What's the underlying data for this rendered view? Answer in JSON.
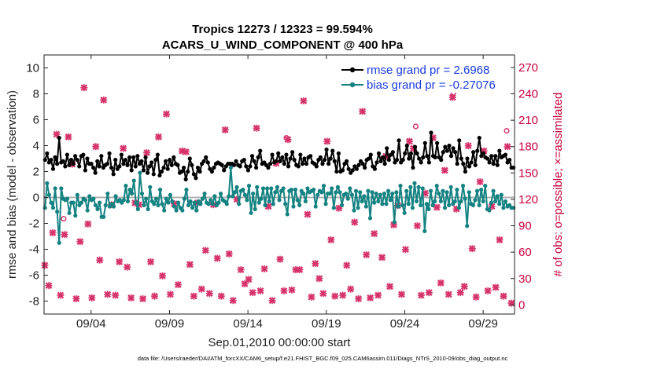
{
  "chart_data": {
    "type": "line",
    "title": [
      "Tropics 12273 / 12323 = 99.594%",
      "ACARS_U_WIND_COMPONENT @ 400 hPa"
    ],
    "xlabel": "Sep.01,2010 00:00:00 start",
    "ylabel": "rmse and bias (model - observation)",
    "y2label": "# of obs: o=possible; ×=assimilated",
    "footnote": "data file: /Users/raeder/DAI/ATM_forcXX/CAM6_setup/f.e21.FHIST_BGC.f09_025.CAM6assim.011/Diags_NTrS_2010-09/obs_diag_output.nc",
    "xlim_days": [
      0.5,
      30.5
    ],
    "ylim": [
      -9,
      11
    ],
    "y2lim": [
      -10.38,
      284.2
    ],
    "yticks": [
      -8,
      -6,
      -4,
      -2,
      0,
      2,
      4,
      6,
      8,
      10
    ],
    "y2ticks": [
      0,
      30,
      60,
      90,
      120,
      150,
      180,
      210,
      240,
      270
    ],
    "xticks": [
      {
        "day": 3.5,
        "label": "09/04"
      },
      {
        "day": 8.5,
        "label": "09/09"
      },
      {
        "day": 13.5,
        "label": "09/14"
      },
      {
        "day": 18.5,
        "label": "09/19"
      },
      {
        "day": 23.5,
        "label": "09/24"
      },
      {
        "day": 28.5,
        "label": "09/29"
      }
    ],
    "series": [
      {
        "name": "rmse",
        "legend": "rmse grand pr = 2.6968",
        "color": "#000000",
        "values": [
          2.9,
          3.4,
          2.7,
          2.9,
          2.2,
          3.1,
          2.6,
          4.6,
          2.7,
          2.8,
          2.4,
          3.3,
          2.5,
          2.9,
          2.6,
          3.2,
          2.9,
          2.4,
          3.2,
          3.3,
          2.1,
          3.0,
          2.6,
          2.6,
          2.3,
          1.9,
          2.8,
          2.4,
          3.2,
          2.3,
          2.5,
          2.6,
          3.4,
          2.3,
          1.8,
          2.9,
          2.2,
          2.4,
          3.3,
          2.6,
          2.9,
          2.5,
          3.1,
          2.1,
          3.1,
          2.4,
          3.2,
          2.6,
          2.8,
          2.1,
          3.1,
          1.9,
          2.4,
          2.7,
          1.8,
          2.9,
          3.3,
          1.7,
          2.0,
          2.3,
          2.8,
          2.2,
          2.9,
          2.5,
          3.1,
          2.6,
          2.5,
          1.9,
          2.0,
          2.3,
          1.4,
          2.0,
          3.0,
          2.5,
          1.8,
          1.5,
          2.3,
          2.0,
          2.6,
          2.8,
          3.1,
          2.7,
          2.2,
          2.0,
          2.3,
          2.6,
          2.7,
          2.6,
          2.5,
          2.1,
          2.4,
          2.6,
          2.6,
          2.6,
          2.5,
          2.8,
          2.5,
          2.4,
          2.8,
          2.9,
          2.4,
          2.1,
          2.4,
          3.2,
          2.8,
          2.3,
          3.1,
          3.6,
          2.6,
          2.7,
          2.5,
          2.3,
          2.6,
          3.3,
          2.7,
          2.8,
          3.4,
          2.8,
          3.1,
          2.6,
          3.3,
          2.4,
          3.0,
          3.5,
          2.9,
          2.5,
          2.4,
          3.3,
          2.6,
          3.0,
          2.6,
          3.1,
          3.2,
          2.7,
          2.6,
          2.4,
          2.9,
          3.1,
          2.6,
          2.9,
          3.7,
          2.6,
          3.0,
          3.6,
          2.8,
          2.0,
          3.4,
          2.0,
          2.1,
          2.6,
          2.8,
          2.2,
          1.9,
          2.1,
          2.4,
          2.2,
          2.5,
          2.8,
          2.6,
          2.3,
          2.9,
          3.0,
          3.3,
          2.4,
          2.2,
          2.7,
          3.4,
          2.8,
          3.1,
          2.6,
          3.8,
          2.9,
          3.3,
          3.5,
          2.7,
          2.9,
          4.4,
          2.7,
          2.9,
          3.4,
          4.0,
          3.0,
          3.4,
          2.3,
          3.9,
          3.4,
          3.0,
          2.7,
          3.1,
          4.2,
          3.2,
          2.7,
          5.0,
          3.2,
          3.1,
          4.2,
          3.1,
          2.9,
          3.5,
          3.9,
          3.6,
          4.0,
          3.2,
          3.8,
          3.5,
          2.6,
          4.4,
          3.0,
          2.6,
          2.0,
          3.0,
          2.4,
          2.7,
          3.5,
          2.5,
          3.6,
          4.6,
          3.2,
          3.4,
          3.1,
          3.0,
          2.7,
          3.2,
          2.6,
          3.2,
          2.5,
          3.6,
          3.1,
          3.2,
          3.3,
          2.7,
          2.9,
          2.3,
          2.3
        ]
      },
      {
        "name": "bias",
        "legend": "bias grand pr = -0.27076",
        "color": "#158282",
        "values": [
          -0.8,
          1.1,
          0.2,
          -0.4,
          -0.8,
          0.7,
          -1.1,
          -3.5,
          0.7,
          -0.1,
          -0.2,
          -0.1,
          -1.2,
          -0.4,
          -0.4,
          -1.4,
          0.2,
          -0.6,
          -0.4,
          -0.1,
          -0.2,
          -1.0,
          0.1,
          -0.2,
          -0.1,
          -0.6,
          -0.9,
          -0.4,
          -1.5,
          -1.5,
          -0.6,
          0.3,
          -0.7,
          -0.5,
          -0.7,
          0.1,
          -0.3,
          -0.2,
          -0.4,
          -0.2,
          0.9,
          -0.3,
          0.6,
          0.3,
          1.3,
          -0.4,
          -0.9,
          1.9,
          0.3,
          -0.6,
          -0.1,
          -0.9,
          0.8,
          -0.3,
          -0.5,
          -0.1,
          -0.6,
          0.6,
          -0.5,
          -1.0,
          -0.1,
          -0.4,
          0.2,
          -0.3,
          -0.7,
          -1.0,
          -0.4,
          -0.8,
          -1.0,
          -0.1,
          0.6,
          -0.6,
          -0.3,
          -0.8,
          -0.4,
          -1.0,
          -0.3,
          -0.5,
          -0.1,
          0.3,
          -0.4,
          -0.5,
          -0.2,
          -0.5,
          0.1,
          -0.6,
          -0.4,
          0.3,
          -0.2,
          -0.3,
          -0.5,
          0.1,
          2.3,
          0.1,
          0.4,
          0.8,
          -0.5,
          0.5,
          0.6,
          0.2,
          -0.2,
          0.9,
          -1.2,
          0.3,
          -0.9,
          0.8,
          -0.4,
          -0.1,
          0.7,
          -0.6,
          0.7,
          -0.3,
          0.7,
          -0.5,
          0.4,
          0.8,
          -0.2,
          0.5,
          0.7,
          -0.5,
          -1.3,
          0.5,
          0.6,
          -0.7,
          0.6,
          -0.2,
          -0.6,
          0.5,
          0.3,
          -0.3,
          0.7,
          0.4,
          0.5,
          0.6,
          -0.7,
          0.2,
          0.5,
          0.4,
          0.9,
          -0.5,
          0.3,
          0.3,
          0.7,
          -0.8,
          0.4,
          0.8,
          0.4,
          -0.6,
          0.2,
          0.3,
          -0.1,
          0.7,
          0.2,
          -1.0,
          0.5,
          -0.8,
          0.4,
          -0.3,
          0.1,
          -0.7,
          0.5,
          -1.6,
          0.4,
          -0.4,
          0.3,
          -0.3,
          0.2,
          -0.5,
          0.3,
          -0.5,
          0.5,
          -0.2,
          0.3,
          -1.9,
          0.4,
          -0.7,
          0.9,
          -0.6,
          -1.2,
          0.5,
          -0.5,
          0.8,
          -0.8,
          1.1,
          -0.3,
          0.8,
          -0.6,
          0.7,
          -2.6,
          -0.5,
          -0.9,
          0.5,
          -0.6,
          -0.3,
          0.9,
          0.3,
          -0.3,
          0.5,
          -0.8,
          0.4,
          -0.6,
          0.8,
          -0.5,
          -0.3,
          0.6,
          -0.8,
          -0.3,
          0.9,
          -0.1,
          -2.2,
          0.4,
          -0.5,
          -0.6,
          -0.2,
          0.5,
          -0.6,
          0.6,
          -0.3,
          0.9,
          -0.9,
          -1.0,
          -0.4,
          0.5,
          -0.3,
          0.1,
          -0.5,
          0.2,
          -0.8,
          -0.3,
          -0.7,
          -0.6,
          -0.8,
          -0.8
        ]
      },
      {
        "name": "obs_assimilated",
        "axis": "right",
        "color": "#d6336c",
        "x_days": [
          0.55,
          0.8,
          1.05,
          1.3,
          1.55,
          1.8,
          2.05,
          2.3,
          2.55,
          2.8,
          3.05,
          3.3,
          3.55,
          3.8,
          4.05,
          4.3,
          4.55,
          4.8,
          5.05,
          5.3,
          5.55,
          5.8,
          6.05,
          6.3,
          6.55,
          6.8,
          7.05,
          7.3,
          7.55,
          7.8,
          8.05,
          8.3,
          8.55,
          8.8,
          9.05,
          9.3,
          9.55,
          9.8,
          10.05,
          10.3,
          10.55,
          10.8,
          11.05,
          11.3,
          11.55,
          11.8,
          12.05,
          12.3,
          12.55,
          12.8,
          13.05,
          13.3,
          13.55,
          13.8,
          14.05,
          14.3,
          14.55,
          14.8,
          15.05,
          15.3,
          15.55,
          15.8,
          16.05,
          16.3,
          16.55,
          16.8,
          17.05,
          17.3,
          17.55,
          17.8,
          18.05,
          18.3,
          18.55,
          18.8,
          19.05,
          19.3,
          19.55,
          19.8,
          20.05,
          20.3,
          20.55,
          20.8,
          21.05,
          21.3,
          21.55,
          21.8,
          22.05,
          22.3,
          22.55,
          22.8,
          23.05,
          23.3,
          23.55,
          23.8,
          24.05,
          24.3,
          24.55,
          24.8,
          25.05,
          25.3,
          25.55,
          25.8,
          26.05,
          26.3,
          26.55,
          26.8,
          27.05,
          27.3,
          27.55,
          27.8,
          28.05,
          28.3,
          28.55,
          28.8,
          29.05,
          29.3,
          29.55,
          29.8,
          30.05,
          30.3
        ],
        "values": [
          45,
          22,
          82,
          194,
          11,
          80,
          191,
          160,
          7,
          72,
          247,
          92,
          8,
          180,
          51,
          233,
          12,
          114,
          11,
          49,
          178,
          43,
          8,
          116,
          114,
          7,
          173,
          49,
          10,
          191,
          33,
          217,
          12,
          115,
          23,
          175,
          174,
          46,
          10,
          116,
          18,
          62,
          13,
          114,
          53,
          10,
          199,
          58,
          5,
          120,
          40,
          24,
          29,
          14,
          201,
          16,
          41,
          112,
          5,
          161,
          52,
          16,
          188,
          17,
          40,
          40,
          232,
          103,
          9,
          47,
          30,
          13,
          186,
          74,
          10,
          110,
          11,
          45,
          18,
          94,
          7,
          220,
          57,
          8,
          81,
          11,
          54,
          169,
          21,
          91,
          113,
          12,
          63,
          186,
          178,
          90,
          11,
          127,
          14,
          190,
          111,
          25,
          153,
          12,
          236,
          109,
          14,
          21,
          181,
          64,
          9,
          140,
          175,
          16,
          112,
          20,
          74,
          10,
          180,
          2
        ]
      },
      {
        "name": "obs_possible",
        "axis": "right",
        "color": "#d6336c",
        "x_days": [
          1.75,
          15.95,
          24.2,
          26.6,
          30.0
        ],
        "values": [
          98,
          190,
          203,
          241,
          198
        ]
      }
    ],
    "legend_location": "top-right"
  }
}
